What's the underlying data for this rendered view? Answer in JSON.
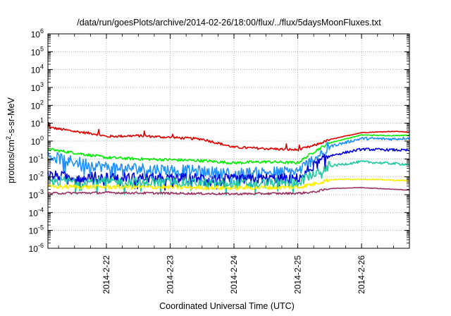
{
  "chart_data": {
    "type": "line",
    "title": "/data/run/goesPlots/archive/2014-02-26/18:00/flux/../flux/5daysMoonFluxes.txt",
    "xlabel": "Coordinated Universal Time (UTC)",
    "ylabel_parts": [
      "protons/cm",
      "2",
      "-s-sr-MeV"
    ],
    "y_scale": "log",
    "ylim_exponent": [
      -6,
      6
    ],
    "y_ticks": [
      {
        "base": "10",
        "exp": "-6"
      },
      {
        "base": "10",
        "exp": "-5"
      },
      {
        "base": "10",
        "exp": "-4"
      },
      {
        "base": "10",
        "exp": "-3"
      },
      {
        "base": "10",
        "exp": "-2"
      },
      {
        "base": "10",
        "exp": "-1"
      },
      {
        "base": "10",
        "exp": "0"
      },
      {
        "base": "10",
        "exp": "1"
      },
      {
        "base": "10",
        "exp": "2"
      },
      {
        "base": "10",
        "exp": "3"
      },
      {
        "base": "10",
        "exp": "4"
      },
      {
        "base": "10",
        "exp": "5"
      },
      {
        "base": "10",
        "exp": "6"
      }
    ],
    "x_range": [
      "2014-02-21T02:00",
      "2014-02-26T18:00"
    ],
    "x_ticks": [
      "2014-2-22",
      "2014-2-23",
      "2014-2-24",
      "2014-2-25",
      "2014-2-26"
    ],
    "x_tick_dates": [
      "2014-02-22",
      "2014-02-23",
      "2014-02-24",
      "2014-02-25",
      "2014-02-26"
    ],
    "grid": true,
    "legend": "none",
    "series": [
      {
        "color": "#e00000",
        "points": [
          [
            "2014-02-21T02:00",
            6.0
          ],
          [
            "2014-02-21T12:00",
            3.5
          ],
          [
            "2014-02-21T20:00",
            2.5
          ],
          [
            "2014-02-22T00:00",
            1.8
          ],
          [
            "2014-02-22T12:00",
            2.0
          ],
          [
            "2014-02-23T00:00",
            1.6
          ],
          [
            "2014-02-23T12:00",
            1.3
          ],
          [
            "2014-02-24T00:00",
            0.45
          ],
          [
            "2014-02-24T12:00",
            0.38
          ],
          [
            "2014-02-25T00:00",
            0.32
          ],
          [
            "2014-02-25T06:00",
            0.55
          ],
          [
            "2014-02-25T12:00",
            1.2
          ],
          [
            "2014-02-26T00:00",
            3.0
          ],
          [
            "2014-02-26T12:00",
            3.5
          ],
          [
            "2014-02-26T18:00",
            3.2
          ]
        ]
      },
      {
        "color": "#00ee00",
        "points": [
          [
            "2014-02-21T02:00",
            0.35
          ],
          [
            "2014-02-21T12:00",
            0.22
          ],
          [
            "2014-02-22T00:00",
            0.12
          ],
          [
            "2014-02-22T12:00",
            0.1
          ],
          [
            "2014-02-23T00:00",
            0.09
          ],
          [
            "2014-02-23T12:00",
            0.08
          ],
          [
            "2014-02-24T00:00",
            0.06
          ],
          [
            "2014-02-24T12:00",
            0.07
          ],
          [
            "2014-02-25T00:00",
            0.06
          ],
          [
            "2014-02-25T06:00",
            0.25
          ],
          [
            "2014-02-25T12:00",
            0.8
          ],
          [
            "2014-02-26T00:00",
            2.2
          ],
          [
            "2014-02-26T12:00",
            2.0
          ],
          [
            "2014-02-26T18:00",
            2.2
          ]
        ]
      },
      {
        "color": "#1e90ff",
        "points": [
          [
            "2014-02-21T02:00",
            0.15
          ],
          [
            "2014-02-21T12:00",
            0.07
          ],
          [
            "2014-02-22T00:00",
            0.035
          ],
          [
            "2014-02-22T12:00",
            0.03
          ],
          [
            "2014-02-23T00:00",
            0.025
          ],
          [
            "2014-02-23T12:00",
            0.02
          ],
          [
            "2014-02-24T00:00",
            0.015
          ],
          [
            "2014-02-24T12:00",
            0.018
          ],
          [
            "2014-02-25T00:00",
            0.02
          ],
          [
            "2014-02-25T06:00",
            0.1
          ],
          [
            "2014-02-25T12:00",
            0.5
          ],
          [
            "2014-02-26T00:00",
            1.4
          ],
          [
            "2014-02-26T12:00",
            1.3
          ],
          [
            "2014-02-26T18:00",
            1.5
          ]
        ]
      },
      {
        "color": "#0000dd",
        "points": [
          [
            "2014-02-21T02:00",
            0.012
          ],
          [
            "2014-02-21T12:00",
            0.01
          ],
          [
            "2014-02-22T00:00",
            0.01
          ],
          [
            "2014-02-22T12:00",
            0.009
          ],
          [
            "2014-02-23T00:00",
            0.008
          ],
          [
            "2014-02-23T12:00",
            0.009
          ],
          [
            "2014-02-24T00:00",
            0.007
          ],
          [
            "2014-02-24T12:00",
            0.008
          ],
          [
            "2014-02-25T00:00",
            0.008
          ],
          [
            "2014-02-25T06:00",
            0.04
          ],
          [
            "2014-02-25T12:00",
            0.15
          ],
          [
            "2014-02-26T00:00",
            0.35
          ],
          [
            "2014-02-26T12:00",
            0.32
          ],
          [
            "2014-02-26T18:00",
            0.3
          ]
        ]
      },
      {
        "color": "#20c8a0",
        "points": [
          [
            "2014-02-21T02:00",
            0.006
          ],
          [
            "2014-02-22T00:00",
            0.005
          ],
          [
            "2014-02-23T00:00",
            0.005
          ],
          [
            "2014-02-24T00:00",
            0.004
          ],
          [
            "2014-02-25T00:00",
            0.005
          ],
          [
            "2014-02-25T06:00",
            0.015
          ],
          [
            "2014-02-25T12:00",
            0.04
          ],
          [
            "2014-02-26T00:00",
            0.07
          ],
          [
            "2014-02-26T12:00",
            0.055
          ],
          [
            "2014-02-26T18:00",
            0.05
          ]
        ]
      },
      {
        "color": "#ffee00",
        "points": [
          [
            "2014-02-21T02:00",
            0.0028
          ],
          [
            "2014-02-22T00:00",
            0.0027
          ],
          [
            "2014-02-23T00:00",
            0.0026
          ],
          [
            "2014-02-24T00:00",
            0.0024
          ],
          [
            "2014-02-25T00:00",
            0.0026
          ],
          [
            "2014-02-25T06:00",
            0.004
          ],
          [
            "2014-02-25T12:00",
            0.007
          ],
          [
            "2014-02-26T00:00",
            0.0075
          ],
          [
            "2014-02-26T12:00",
            0.0065
          ],
          [
            "2014-02-26T18:00",
            0.006
          ]
        ]
      },
      {
        "color": "#993366",
        "points": [
          [
            "2014-02-21T02:00",
            0.0012
          ],
          [
            "2014-02-22T00:00",
            0.0013
          ],
          [
            "2014-02-23T00:00",
            0.0012
          ],
          [
            "2014-02-24T00:00",
            0.0011
          ],
          [
            "2014-02-25T00:00",
            0.0012
          ],
          [
            "2014-02-25T06:00",
            0.0014
          ],
          [
            "2014-02-25T12:00",
            0.0022
          ],
          [
            "2014-02-26T00:00",
            0.0025
          ],
          [
            "2014-02-26T12:00",
            0.002
          ],
          [
            "2014-02-26T18:00",
            0.0018
          ]
        ]
      }
    ]
  }
}
